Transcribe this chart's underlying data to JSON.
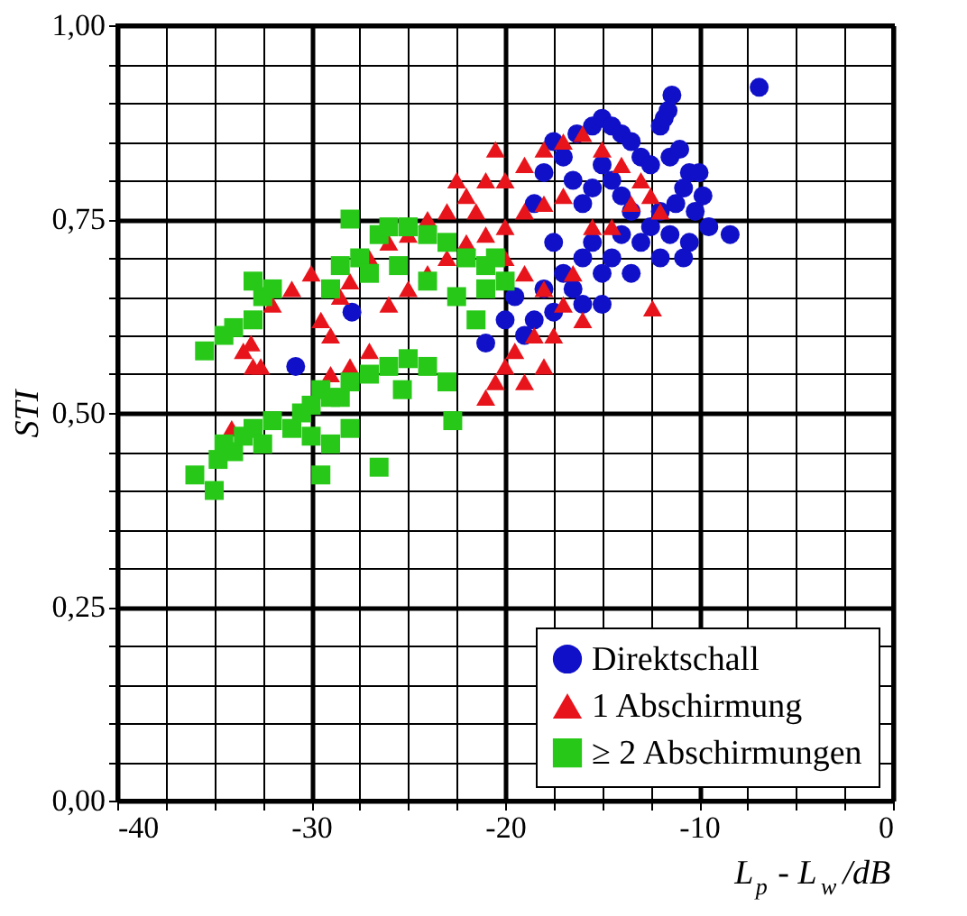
{
  "chart_data": {
    "type": "scatter",
    "xlabel": "L$_{p}$ - L$_{w}$ /dB",
    "ylabel": "STI",
    "xlim": [
      -40,
      0
    ],
    "ylim": [
      0,
      1
    ],
    "xticks": [
      -40,
      {
        "value": -37.5,
        "label": null
      },
      {
        "value": -35,
        "label": null
      },
      {
        "value": -32.5,
        "label": null
      },
      -30,
      {
        "value": -27.5,
        "label": null
      },
      {
        "value": -25,
        "label": null
      },
      {
        "value": -22.5,
        "label": null
      },
      -20,
      {
        "value": -17.5,
        "label": null
      },
      {
        "value": -15,
        "label": null
      },
      {
        "value": -12.5,
        "label": null
      },
      -10,
      {
        "value": -7.5,
        "label": null
      },
      {
        "value": -5,
        "label": null
      },
      {
        "value": -2.5,
        "label": null
      },
      0
    ],
    "yticks": [
      {
        "value": 0,
        "label": "0,00"
      },
      {
        "value": 0.05,
        "label": null
      },
      {
        "value": 0.1,
        "label": null
      },
      {
        "value": 0.15,
        "label": null
      },
      {
        "value": 0.2,
        "label": null
      },
      {
        "value": 0.25,
        "label": "0,25"
      },
      {
        "value": 0.3,
        "label": null
      },
      {
        "value": 0.35,
        "label": null
      },
      {
        "value": 0.4,
        "label": null
      },
      {
        "value": 0.45,
        "label": null
      },
      {
        "value": 0.5,
        "label": "0,50"
      },
      {
        "value": 0.55,
        "label": null
      },
      {
        "value": 0.6,
        "label": null
      },
      {
        "value": 0.65,
        "label": null
      },
      {
        "value": 0.7,
        "label": null
      },
      {
        "value": 0.75,
        "label": "0,75"
      },
      {
        "value": 0.8,
        "label": null
      },
      {
        "value": 0.85,
        "label": null
      },
      {
        "value": 0.9,
        "label": null
      },
      {
        "value": 0.95,
        "label": null
      },
      {
        "value": 1,
        "label": "1,00"
      }
    ],
    "grid": true,
    "legend": "bottom right",
    "series": [
      {
        "name": "Direktschall",
        "color": "#1010c8",
        "marker": "circle",
        "x": [
          -16.3,
          -15.5,
          -15,
          -14.5,
          -14,
          -13.5,
          -12,
          -11.6,
          -11.4,
          -11.8,
          -13,
          -12.5,
          -11.5,
          -11,
          -10.5,
          -10,
          -10.8,
          -11.2,
          -12,
          -12.5,
          -11.5,
          -10.5,
          -10.2,
          -10.8,
          -12,
          -13,
          -13.5,
          -14,
          -14.5,
          -15,
          -15.5,
          -16,
          -16.5,
          -17,
          -17.5,
          -18,
          -18.5,
          -14,
          -14.5,
          -15,
          -15.5,
          -16,
          -16.5,
          -17,
          -17.5,
          -18,
          -18.5,
          -19,
          -17.5,
          -16,
          -15,
          -13.5,
          -9.5,
          -9.8,
          -6.9,
          -8.4,
          -30.8,
          -27.9,
          -21,
          -19.5,
          -20
        ],
        "values": [
          0.86,
          0.87,
          0.88,
          0.87,
          0.86,
          0.85,
          0.87,
          0.89,
          0.91,
          0.88,
          0.83,
          0.82,
          0.83,
          0.84,
          0.81,
          0.81,
          0.79,
          0.77,
          0.76,
          0.74,
          0.73,
          0.72,
          0.76,
          0.7,
          0.7,
          0.72,
          0.76,
          0.78,
          0.8,
          0.82,
          0.79,
          0.77,
          0.8,
          0.83,
          0.85,
          0.81,
          0.77,
          0.73,
          0.7,
          0.68,
          0.72,
          0.7,
          0.66,
          0.68,
          0.72,
          0.66,
          0.62,
          0.6,
          0.63,
          0.64,
          0.64,
          0.68,
          0.74,
          0.78,
          0.92,
          0.73,
          0.56,
          0.63,
          0.59,
          0.65,
          0.62
        ]
      },
      {
        "name": "1 Abschirmung",
        "color": "#e8141c",
        "marker": "triangle",
        "x": [
          -33.5,
          -33,
          -32,
          -31,
          -30,
          -29.5,
          -29,
          -28.5,
          -28,
          -27,
          -26,
          -25,
          -24,
          -23,
          -22,
          -21,
          -20,
          -19,
          -18,
          -17,
          -16,
          -15,
          -14,
          -13,
          -12.5,
          -12,
          -13.5,
          -14.5,
          -15.5,
          -17,
          -18,
          -19,
          -20,
          -21,
          -22,
          -23,
          -24,
          -25,
          -26,
          -27,
          -28,
          -29,
          -20,
          -19,
          -18,
          -17,
          -16,
          -18.5,
          -19.5,
          -20,
          -20.5,
          -21,
          -19,
          -18,
          -17.5,
          -16.5,
          -21.5,
          -22.5,
          -20.5,
          -12.4,
          -33.1,
          -32.6,
          -34.1
        ],
        "values": [
          0.58,
          0.56,
          0.64,
          0.66,
          0.68,
          0.62,
          0.6,
          0.65,
          0.67,
          0.7,
          0.72,
          0.73,
          0.75,
          0.76,
          0.78,
          0.8,
          0.8,
          0.82,
          0.84,
          0.85,
          0.86,
          0.84,
          0.82,
          0.8,
          0.78,
          0.76,
          0.77,
          0.74,
          0.74,
          0.78,
          0.77,
          0.76,
          0.74,
          0.73,
          0.72,
          0.7,
          0.68,
          0.66,
          0.64,
          0.58,
          0.56,
          0.55,
          0.7,
          0.68,
          0.66,
          0.64,
          0.62,
          0.6,
          0.58,
          0.56,
          0.54,
          0.52,
          0.54,
          0.56,
          0.6,
          0.68,
          0.76,
          0.8,
          0.84,
          0.635,
          0.59,
          0.56,
          0.48
        ]
      },
      {
        "name": "≥ 2 Abschirmungen",
        "color": "#28c818",
        "marker": "square",
        "x": [
          -35,
          -34.8,
          -34.5,
          -34,
          -33.5,
          -33,
          -32.5,
          -32,
          -31,
          -30.5,
          -30,
          -29.5,
          -29,
          -28.5,
          -28,
          -27,
          -26,
          -25,
          -24,
          -23,
          -29.5,
          -30,
          -29,
          -28,
          -26.5,
          -22.7,
          -25.3,
          -36,
          -34,
          -33,
          -32.5,
          -32,
          -33,
          -34.5,
          -35.5,
          -29,
          -28.5,
          -28,
          -27.5,
          -26.5,
          -26,
          -25,
          -24,
          -23,
          -22,
          -21,
          -20.5,
          -20,
          -21,
          -22.5,
          -24,
          -25.5,
          -27,
          -21.5
        ],
        "values": [
          0.4,
          0.44,
          0.46,
          0.45,
          0.47,
          0.48,
          0.46,
          0.49,
          0.48,
          0.5,
          0.51,
          0.53,
          0.52,
          0.52,
          0.54,
          0.55,
          0.56,
          0.57,
          0.56,
          0.54,
          0.42,
          0.47,
          0.46,
          0.48,
          0.43,
          0.49,
          0.53,
          0.42,
          0.61,
          0.62,
          0.65,
          0.66,
          0.67,
          0.6,
          0.58,
          0.66,
          0.69,
          0.75,
          0.7,
          0.73,
          0.74,
          0.74,
          0.73,
          0.72,
          0.7,
          0.69,
          0.7,
          0.67,
          0.66,
          0.65,
          0.67,
          0.69,
          0.68,
          0.62
        ]
      }
    ]
  }
}
